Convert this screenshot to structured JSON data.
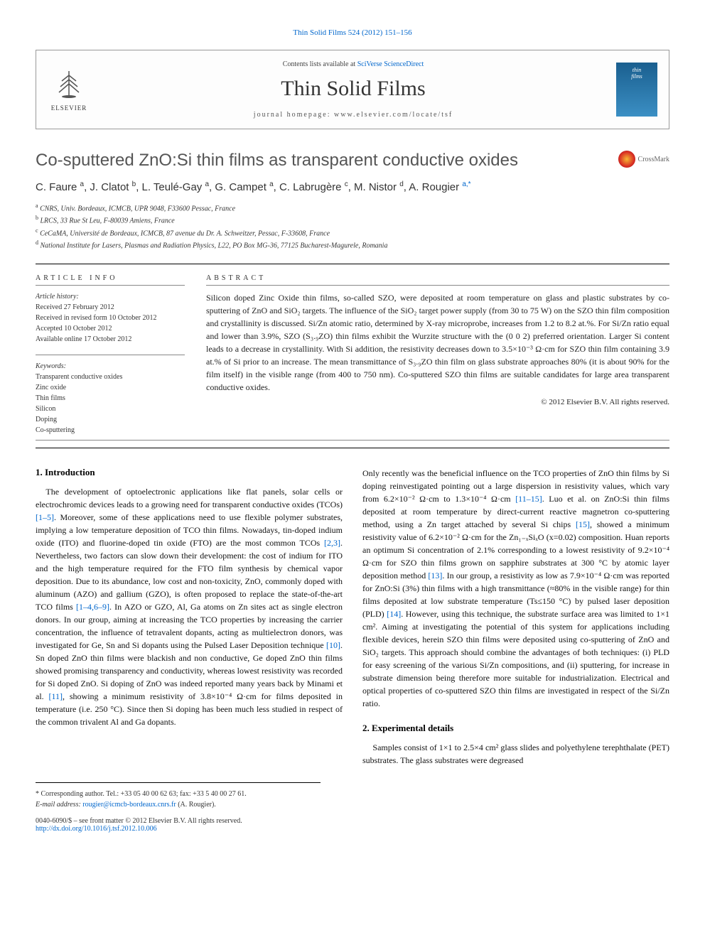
{
  "top_link": "Thin Solid Films 524 (2012) 151–156",
  "header": {
    "elsevier": "ELSEVIER",
    "contents_prefix": "Contents lists available at ",
    "contents_link": "SciVerse ScienceDirect",
    "journal_name": "Thin Solid Films",
    "homepage": "journal homepage: www.elsevier.com/locate/tsf",
    "cover_text_1": "thin",
    "cover_text_2": "films"
  },
  "title": "Co-sputtered ZnO:Si thin films as transparent conductive oxides",
  "crossmark": "CrossMark",
  "authors_html": "C. Faure <sup>a</sup>, J. Clatot <sup>b</sup>, L. Teulé-Gay <sup>a</sup>, G. Campet <sup>a</sup>, C. Labrugère <sup>c</sup>, M. Nistor <sup>d</sup>, A. Rougier <sup class='corr'>a,*</sup>",
  "affiliations": {
    "a": "CNRS, Univ. Bordeaux, ICMCB, UPR 9048, F33600 Pessac, France",
    "b": "LRCS, 33 Rue St Leu, F-80039 Amiens, France",
    "c": "CeCaMA, Université de Bordeaux, ICMCB, 87 avenue du Dr. A. Schweitzer, Pessac, F-33608, France",
    "d": "National Institute for Lasers, Plasmas and Radiation Physics, L22, PO Box MG-36, 77125 Bucharest-Magurele, Romania"
  },
  "info": {
    "head": "ARTICLE INFO",
    "history_label": "Article history:",
    "history": [
      "Received 27 February 2012",
      "Received in revised form 10 October 2012",
      "Accepted 10 October 2012",
      "Available online 17 October 2012"
    ],
    "keywords_label": "Keywords:",
    "keywords": [
      "Transparent conductive oxides",
      "Zinc oxide",
      "Thin films",
      "Silicon",
      "Doping",
      "Co-sputtering"
    ]
  },
  "abstract": {
    "head": "ABSTRACT",
    "text": "Silicon doped Zinc Oxide thin films, so-called SZO, were deposited at room temperature on glass and plastic substrates by co-sputtering of ZnO and SiO₂ targets. The influence of the SiO₂ target power supply (from 30 to 75 W) on the SZO thin film composition and crystallinity is discussed. Si/Zn atomic ratio, determined by X-ray microprobe, increases from 1.2 to 8.2 at.%. For Si/Zn ratio equal and lower than 3.9%, SZO (S₃.₉ZO) thin films exhibit the Wurzite structure with the (0 0 2) preferred orientation. Larger Si content leads to a decrease in crystallinity. With Si addition, the resistivity decreases down to 3.5×10⁻³ Ω·cm for SZO thin film containing 3.9 at.% of Si prior to an increase. The mean transmittance of S₃.₉ZO thin film on glass substrate approaches 80% (it is about 90% for the film itself) in the visible range (from 400 to 750 nm). Co-sputtered SZO thin films are suitable candidates for large area transparent conductive oxides.",
    "copyright": "© 2012 Elsevier B.V. All rights reserved."
  },
  "sections": {
    "intro_head": "1. Introduction",
    "intro_p1": "The development of optoelectronic applications like flat panels, solar cells or electrochromic devices leads to a growing need for transparent conductive oxides (TCOs) <span class='cite'>[1–5]</span>. Moreover, some of these applications need to use flexible polymer substrates, implying a low temperature deposition of TCO thin films. Nowadays, tin-doped indium oxide (ITO) and fluorine-doped tin oxide (FTO) are the most common TCOs <span class='cite'>[2,3]</span>. Nevertheless, two factors can slow down their development: the cost of indium for ITO and the high temperature required for the FTO film synthesis by chemical vapor deposition. Due to its abundance, low cost and non-toxicity, ZnO, commonly doped with aluminum (AZO) and gallium (GZO), is often proposed to replace the state-of-the-art TCO films <span class='cite'>[1–4,6–9]</span>. In AZO or GZO, Al, Ga atoms on Zn sites act as single electron donors. In our group, aiming at increasing the TCO properties by increasing the carrier concentration, the influence of tetravalent dopants, acting as multielectron donors, was investigated for Ge, Sn and Si dopants using the Pulsed Laser Deposition technique <span class='cite'>[10]</span>. Sn doped ZnO thin films were blackish and non conductive, Ge doped ZnO thin films showed promising transparency and conductivity, whereas lowest resistivity was recorded for Si doped ZnO. Si doping of ZnO was indeed reported many years back by Minami et al. <span class='cite'>[11]</span>, showing a minimum resistivity of 3.8×10⁻⁴ Ω·cm for films deposited in temperature (i.e. 250 °C). Since then Si doping has been much less studied in respect of the common trivalent Al and Ga dopants.",
    "intro_p2": "Only recently was the beneficial influence on the TCO properties of ZnO thin films by Si doping reinvestigated pointing out a large dispersion in resistivity values, which vary from 6.2×10⁻² Ω·cm to 1.3×10⁻⁴ Ω·cm <span class='cite'>[11–15]</span>. Luo et al. on ZnO:Si thin films deposited at room temperature by direct-current reactive magnetron co-sputtering method, using a Zn target attached by several Si chips <span class='cite'>[15]</span>, showed a minimum resistivity value of 6.2×10⁻² Ω·cm for the Zn₁₋ₓSiₓO (x=0.02) composition. Huan reports an optimum Si concentration of 2.1% corresponding to a lowest resistivity of 9.2×10⁻⁴ Ω·cm for SZO thin films grown on sapphire substrates at 300 °C by atomic layer deposition method <span class='cite'>[13]</span>. In our group, a resistivity as low as 7.9×10⁻⁴ Ω·cm was reported for ZnO:Si (3%) thin films with a high transmittance (≈80% in the visible range) for thin films deposited at low substrate temperature (Ts≤150 °C) by pulsed laser deposition (PLD) <span class='cite'>[14]</span>. However, using this technique, the substrate surface area was limited to 1×1 cm². Aiming at investigating the potential of this system for applications including flexible devices, herein SZO thin films were deposited using co-sputtering of ZnO and SiO₂ targets. This approach should combine the advantages of both techniques: (i) PLD for easy screening of the various Si/Zn compositions, and (ii) sputtering, for increase in substrate dimension being therefore more suitable for industrialization. Electrical and optical properties of co-sputtered SZO thin films are investigated in respect of the Si/Zn ratio.",
    "exp_head": "2. Experimental details",
    "exp_p1": "Samples consist of 1×1 to 2.5×4 cm² glass slides and polyethylene terephthalate (PET) substrates. The glass substrates were degreased"
  },
  "footer": {
    "corr": "* Corresponding author. Tel.: +33 05 40 00 62 63; fax: +33 5 40 00 27 61.",
    "email_label": "E-mail address:",
    "email": "rougier@icmcb-bordeaux.cnrs.fr",
    "email_name": "(A. Rougier).",
    "issn": "0040-6090/$ – see front matter © 2012 Elsevier B.V. All rights reserved.",
    "doi": "http://dx.doi.org/10.1016/j.tsf.2012.10.006"
  }
}
